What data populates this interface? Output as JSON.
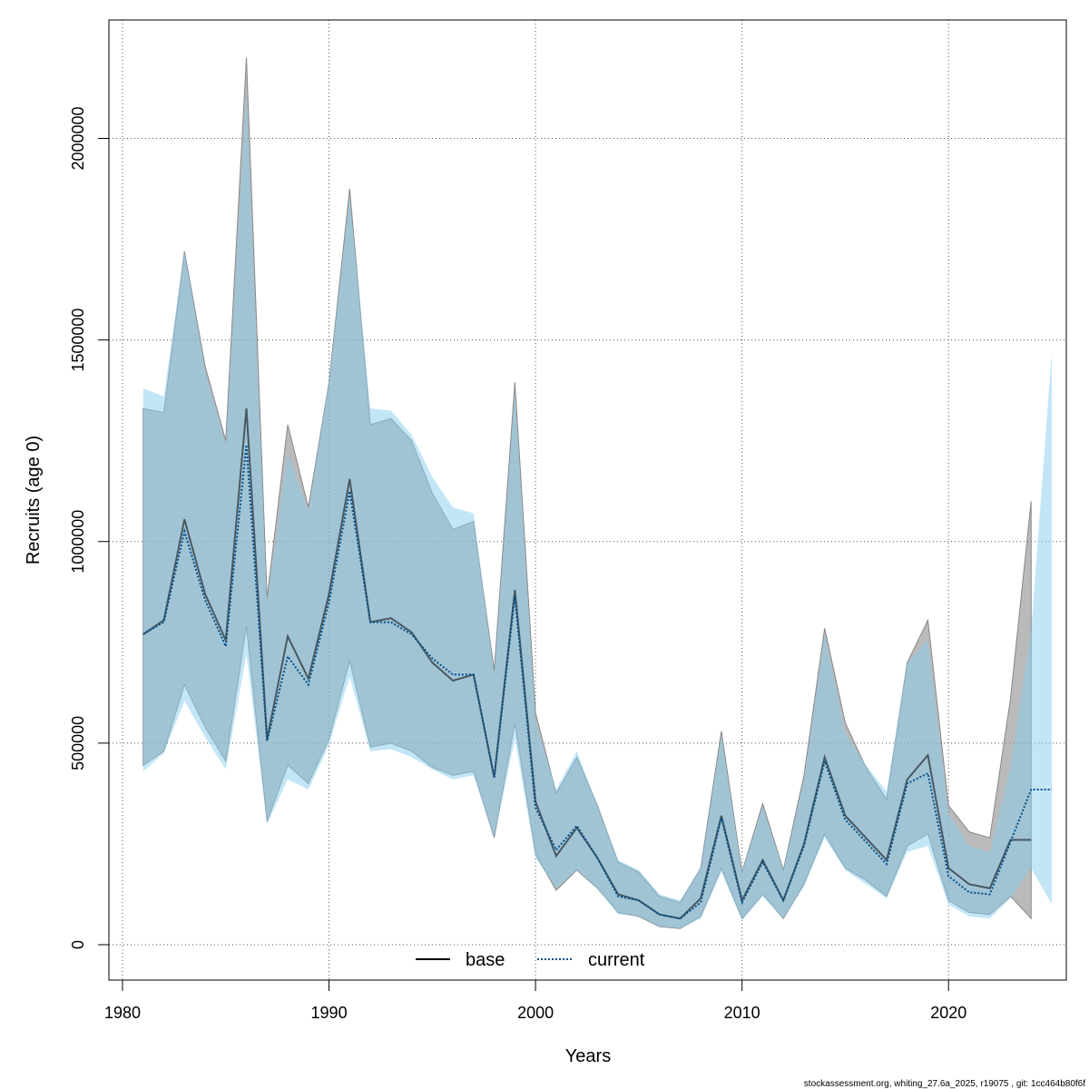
{
  "chart_data": {
    "type": "line",
    "xlabel": "Years",
    "ylabel": "Recruits (age 0)",
    "xlim": [
      1980,
      2025
    ],
    "ylim": [
      0,
      2300000
    ],
    "x_ticks": [
      1980,
      1990,
      2000,
      2010,
      2020
    ],
    "y_ticks": [
      0,
      500000,
      1000000,
      1500000,
      2000000
    ],
    "grid": true,
    "legend_position": "bottom-center",
    "footer": "stockassessment.org, whiting_27.6a_2025, r19075 , git: 1cc464b80f6f",
    "series": [
      {
        "name": "base",
        "line_style": "solid",
        "line_color": "#000000",
        "band_color": "#8c8c8c",
        "x": [
          1981,
          1982,
          1983,
          1984,
          1985,
          1986,
          1987,
          1988,
          1989,
          1990,
          1991,
          1992,
          1993,
          1994,
          1995,
          1996,
          1997,
          1998,
          1999,
          2000,
          2001,
          2002,
          2003,
          2004,
          2005,
          2006,
          2007,
          2008,
          2009,
          2010,
          2011,
          2012,
          2013,
          2014,
          2015,
          2016,
          2017,
          2018,
          2019,
          2020,
          2021,
          2022,
          2023,
          2024
        ],
        "values": [
          770000,
          805000,
          1055000,
          870000,
          755000,
          1330000,
          510000,
          765000,
          660000,
          870000,
          1155000,
          800000,
          810000,
          775000,
          700000,
          655000,
          670000,
          415000,
          880000,
          355000,
          220000,
          290000,
          215000,
          125000,
          110000,
          75000,
          65000,
          115000,
          320000,
          110000,
          210000,
          110000,
          250000,
          465000,
          320000,
          265000,
          210000,
          410000,
          470000,
          190000,
          150000,
          140000,
          260000,
          260000
        ],
        "lower": [
          445000,
          480000,
          645000,
          540000,
          455000,
          790000,
          305000,
          445000,
          400000,
          510000,
          705000,
          490000,
          500000,
          480000,
          440000,
          420000,
          430000,
          265000,
          550000,
          225000,
          135000,
          185000,
          140000,
          80000,
          70000,
          45000,
          40000,
          70000,
          190000,
          65000,
          125000,
          65000,
          150000,
          275000,
          190000,
          160000,
          120000,
          245000,
          275000,
          110000,
          80000,
          75000,
          120000,
          65000
        ],
        "upper": [
          1330000,
          1320000,
          1720000,
          1435000,
          1250000,
          2200000,
          860000,
          1290000,
          1085000,
          1395000,
          1875000,
          1290000,
          1305000,
          1250000,
          1120000,
          1030000,
          1050000,
          680000,
          1395000,
          575000,
          375000,
          465000,
          345000,
          205000,
          180000,
          120000,
          105000,
          190000,
          530000,
          180000,
          350000,
          185000,
          420000,
          785000,
          550000,
          440000,
          360000,
          700000,
          805000,
          345000,
          280000,
          265000,
          610000,
          1100000
        ]
      },
      {
        "name": "current",
        "line_style": "dotted",
        "line_color": "#00508c",
        "band_color": "#87cef0",
        "x": [
          1981,
          1982,
          1983,
          1984,
          1985,
          1986,
          1987,
          1988,
          1989,
          1990,
          1991,
          1992,
          1993,
          1994,
          1995,
          1996,
          1997,
          1998,
          1999,
          2000,
          2001,
          2002,
          2003,
          2004,
          2005,
          2006,
          2007,
          2008,
          2009,
          2010,
          2011,
          2012,
          2013,
          2014,
          2015,
          2016,
          2017,
          2018,
          2019,
          2020,
          2021,
          2022,
          2023,
          2024,
          2025
        ],
        "values": [
          770000,
          800000,
          1025000,
          855000,
          740000,
          1240000,
          505000,
          715000,
          645000,
          850000,
          1125000,
          800000,
          800000,
          770000,
          710000,
          670000,
          670000,
          415000,
          865000,
          340000,
          235000,
          295000,
          215000,
          120000,
          110000,
          75000,
          65000,
          105000,
          315000,
          105000,
          205000,
          110000,
          245000,
          455000,
          310000,
          255000,
          200000,
          400000,
          425000,
          170000,
          130000,
          125000,
          255000,
          385000,
          385000
        ],
        "lower": [
          430000,
          475000,
          605000,
          515000,
          435000,
          720000,
          300000,
          410000,
          385000,
          495000,
          665000,
          480000,
          485000,
          465000,
          435000,
          410000,
          420000,
          265000,
          510000,
          215000,
          140000,
          185000,
          140000,
          75000,
          70000,
          45000,
          40000,
          65000,
          180000,
          60000,
          120000,
          65000,
          145000,
          265000,
          185000,
          150000,
          115000,
          230000,
          245000,
          100000,
          70000,
          65000,
          115000,
          190000,
          100000
        ],
        "upper": [
          1380000,
          1360000,
          1720000,
          1425000,
          1240000,
          2120000,
          850000,
          1220000,
          1075000,
          1400000,
          1855000,
          1330000,
          1325000,
          1265000,
          1160000,
          1085000,
          1070000,
          670000,
          1375000,
          555000,
          385000,
          480000,
          345000,
          210000,
          185000,
          125000,
          110000,
          190000,
          520000,
          180000,
          345000,
          185000,
          410000,
          770000,
          525000,
          445000,
          380000,
          700000,
          755000,
          325000,
          245000,
          230000,
          440000,
          780000,
          1470000
        ]
      }
    ]
  }
}
